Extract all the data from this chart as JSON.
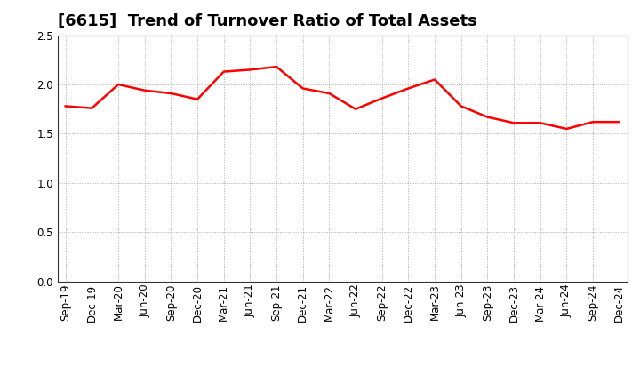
{
  "title": "[6615]  Trend of Turnover Ratio of Total Assets",
  "x_labels": [
    "Sep-19",
    "Dec-19",
    "Mar-20",
    "Jun-20",
    "Sep-20",
    "Dec-20",
    "Mar-21",
    "Jun-21",
    "Sep-21",
    "Dec-21",
    "Mar-22",
    "Jun-22",
    "Sep-22",
    "Dec-22",
    "Mar-23",
    "Jun-23",
    "Sep-23",
    "Dec-23",
    "Mar-24",
    "Jun-24",
    "Sep-24",
    "Dec-24"
  ],
  "values": [
    1.78,
    1.76,
    2.0,
    1.94,
    1.91,
    1.85,
    2.13,
    2.15,
    2.18,
    1.96,
    1.91,
    1.75,
    1.86,
    1.96,
    2.05,
    1.78,
    1.67,
    1.61,
    1.61,
    1.55,
    1.62,
    1.62
  ],
  "line_color": "#ff0000",
  "line_width": 1.8,
  "ylim": [
    0.0,
    2.5
  ],
  "yticks": [
    0.0,
    0.5,
    1.0,
    1.5,
    2.0,
    2.5
  ],
  "grid_color": "#999999",
  "grid_style": "dotted",
  "bg_color": "#ffffff",
  "title_fontsize": 13,
  "tick_fontsize": 8.5
}
